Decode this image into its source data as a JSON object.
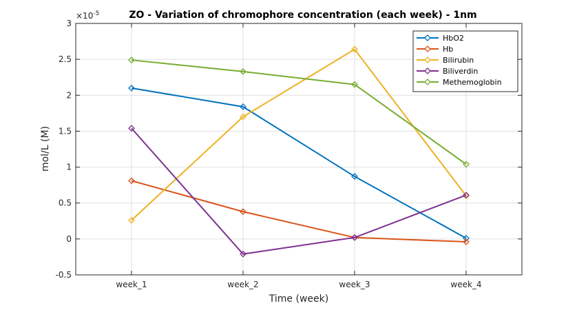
{
  "chart_data": {
    "type": "line",
    "title": "ZO - Variation of chromophore concentration (each week) - 1nm",
    "xlabel": "Time (week)",
    "ylabel": "mol/L (M)",
    "y_exponent_label": "×10",
    "y_exponent_power": "-5",
    "categories": [
      "week_1",
      "week_2",
      "week_3",
      "week_4"
    ],
    "ylim": [
      -0.5,
      3
    ],
    "yticks": [
      -0.5,
      0,
      0.5,
      1,
      1.5,
      2,
      2.5,
      3
    ],
    "ytick_labels": [
      "-0.5",
      "0",
      "0.5",
      "1",
      "1.5",
      "2",
      "2.5",
      "3"
    ],
    "grid": true,
    "legend_position": "top-right",
    "series": [
      {
        "name": "HbO2",
        "color": "#0072BD",
        "values": [
          2.1,
          1.84,
          0.87,
          0.01
        ]
      },
      {
        "name": "Hb",
        "color": "#D95319",
        "values": [
          0.81,
          0.38,
          0.02,
          -0.04
        ]
      },
      {
        "name": "Bilirubin",
        "color": "#EDB120",
        "values": [
          0.26,
          1.7,
          2.64,
          0.6
        ]
      },
      {
        "name": "Biliverdin",
        "color": "#7E2F8E",
        "values": [
          1.54,
          -0.21,
          0.02,
          0.61
        ]
      },
      {
        "name": "Methemoglobin",
        "color": "#77AC30",
        "values": [
          2.49,
          2.33,
          2.15,
          1.04
        ]
      }
    ]
  }
}
